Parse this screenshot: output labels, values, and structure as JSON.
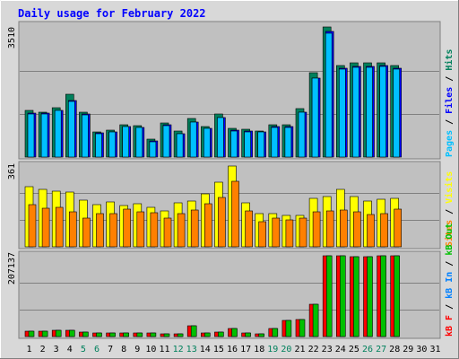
{
  "chart_data": {
    "type": "bar",
    "title": "Daily usage for February 2022",
    "x": [
      "1",
      "2",
      "3",
      "4",
      "5",
      "6",
      "7",
      "8",
      "9",
      "10",
      "11",
      "12",
      "13",
      "14",
      "15",
      "16",
      "17",
      "18",
      "19",
      "20",
      "21",
      "22",
      "23",
      "24",
      "25",
      "26",
      "27",
      "28",
      "29",
      "30",
      "31"
    ],
    "weekend_days": [
      "5",
      "6",
      "12",
      "13",
      "19",
      "20",
      "26",
      "27"
    ],
    "colors": {
      "hits": "#00805c",
      "files": "#0000ff",
      "pages": "#00c0ff",
      "visits": "#ffff00",
      "sites": "#ff8000",
      "kb_in": "#0080ff",
      "kb_out": "#00c000",
      "kb_f": "#ff0000",
      "plot_bg": "#c0c0c0",
      "frame_bg": "#d8d8d8",
      "title": "#0000ff",
      "weekday_label": "#000000",
      "weekend_label": "#00805c"
    },
    "panels": [
      {
        "name": "hits_files_pages",
        "max_label": "3510",
        "ymax": 3510,
        "right_labels": [
          {
            "text": "Pages",
            "color": "#00c0ff"
          },
          {
            "text": " / ",
            "color": "#000000"
          },
          {
            "text": "Files",
            "color": "#0000ff"
          },
          {
            "text": " / ",
            "color": "#000000"
          },
          {
            "text": "Hits",
            "color": "#00805c"
          }
        ],
        "series": [
          {
            "name": "Hits",
            "color": "#00805c",
            "values": [
              1250,
              1220,
              1330,
              1690,
              1210,
              680,
              720,
              870,
              840,
              490,
              910,
              700,
              1040,
              830,
              1150,
              770,
              740,
              710,
              870,
              860,
              1310,
              2280,
              3510,
              2480,
              2550,
              2530,
              2550,
              2460
            ]
          },
          {
            "name": "Files",
            "color": "#0000ff",
            "values": [
              1180,
              1180,
              1260,
              1530,
              1150,
              650,
              680,
              830,
              800,
              430,
              860,
              640,
              950,
              780,
              1070,
              720,
              690,
              680,
              820,
              820,
              1220,
              2140,
              3380,
              2400,
              2440,
              2440,
              2470,
              2400
            ]
          },
          {
            "name": "Pages",
            "color": "#00c0ff",
            "values": [
              1170,
              1170,
              1250,
              1510,
              1140,
              640,
              670,
              820,
              790,
              420,
              850,
              630,
              940,
              770,
              1060,
              710,
              680,
              670,
              810,
              810,
              1210,
              2120,
              3350,
              2380,
              2420,
              2420,
              2450,
              2380
            ]
          }
        ]
      },
      {
        "name": "visits_sites",
        "max_label": "361",
        "ymax": 361,
        "right_labels": [
          {
            "text": "Sites",
            "color": "#ff8000"
          },
          {
            "text": " / ",
            "color": "#000000"
          },
          {
            "text": "Visits",
            "color": "#ffff00"
          }
        ],
        "series": [
          {
            "name": "Visits",
            "color": "#ffff00",
            "values": [
              268,
              256,
              248,
              244,
              210,
              190,
              200,
              184,
              192,
              176,
              162,
              196,
              206,
              238,
              290,
              361,
              196,
              150,
              148,
              140,
              142,
              216,
              224,
              256,
              224,
              206,
              212,
              218
            ]
          },
          {
            "name": "Sites",
            "color": "#ff8000",
            "values": [
              188,
              174,
              178,
              158,
              128,
              150,
              150,
              168,
              156,
              154,
              130,
              150,
              164,
              194,
              222,
              294,
              160,
              112,
              128,
              120,
              128,
              158,
              160,
              164,
              158,
              144,
              150,
              168
            ]
          }
        ]
      },
      {
        "name": "kbytes",
        "max_label": "207137",
        "ymax": 207137,
        "right_labels": [
          {
            "text": "kB F",
            "color": "#ff0000"
          },
          {
            "text": " / ",
            "color": "#000000"
          },
          {
            "text": "kB In",
            "color": "#0080ff"
          },
          {
            "text": " / ",
            "color": "#000000"
          },
          {
            "text": "kB Out",
            "color": "#00c000"
          }
        ],
        "series": [
          {
            "name": "kB F",
            "color": "#ff0000",
            "values": [
              13000,
              13000,
              16000,
              16000,
              11000,
              10000,
              9000,
              10000,
              9000,
              9000,
              7000,
              8000,
              28000,
              9000,
              11000,
              20000,
              9000,
              8000,
              20000,
              42000,
              44000,
              83000,
              207137,
              207137,
              204000,
              204000,
              207137,
              207137
            ]
          },
          {
            "name": "kB In",
            "color": "#0080ff",
            "values": [
              0,
              0,
              0,
              0,
              0,
              0,
              0,
              0,
              0,
              0,
              0,
              0,
              0,
              0,
              0,
              0,
              0,
              0,
              0,
              0,
              0,
              0,
              0,
              0,
              0,
              0,
              0,
              0
            ]
          },
          {
            "name": "kB Out",
            "color": "#00c000",
            "values": [
              13000,
              13000,
              16000,
              16000,
              11000,
              10000,
              9000,
              10000,
              9000,
              9000,
              7000,
              8000,
              28000,
              9000,
              11000,
              20000,
              9000,
              8000,
              20000,
              42000,
              44000,
              83000,
              207137,
              207137,
              204000,
              204000,
              207137,
              207137
            ]
          }
        ]
      }
    ]
  }
}
